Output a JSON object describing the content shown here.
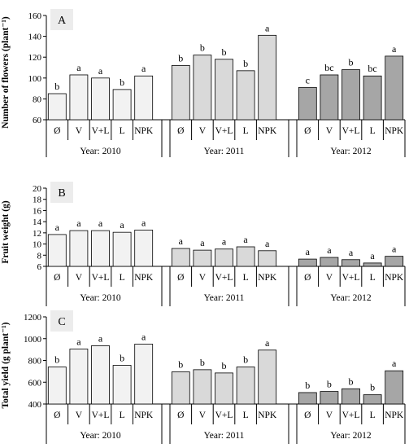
{
  "chart_data": [
    {
      "type": "bar",
      "panel_label": "A",
      "ylabel": "Number of flowers (plant⁻¹)",
      "ylim": [
        60,
        160
      ],
      "yticks": [
        60,
        80,
        100,
        120,
        140,
        160
      ],
      "categories": [
        "Ø",
        "V",
        "V+L",
        "L",
        "NPK"
      ],
      "groups": [
        {
          "name": "Year: 2010",
          "color": "#f2f2f2",
          "values": [
            85,
            103,
            100,
            89,
            102
          ],
          "letters": [
            "b",
            "a",
            "a",
            "b",
            "a"
          ]
        },
        {
          "name": "Year: 2011",
          "color": "#d9d9d9",
          "values": [
            112,
            122,
            118,
            107,
            141
          ],
          "letters": [
            "b",
            "b",
            "b",
            "b",
            "a"
          ]
        },
        {
          "name": "Year: 2012",
          "color": "#a6a6a6",
          "values": [
            91,
            103,
            108,
            102,
            121
          ],
          "letters": [
            "c",
            "bc",
            "b",
            "bc",
            "a"
          ]
        }
      ]
    },
    {
      "type": "bar",
      "panel_label": "B",
      "ylabel": "Fruit weight (g)",
      "ylim": [
        6,
        20
      ],
      "yticks": [
        6,
        8,
        10,
        12,
        14,
        16,
        18,
        20
      ],
      "categories": [
        "Ø",
        "V",
        "V+L",
        "L",
        "NPK"
      ],
      "groups": [
        {
          "name": "Year: 2010",
          "color": "#f2f2f2",
          "values": [
            11.7,
            12.4,
            12.4,
            12.1,
            12.5
          ],
          "letters": [
            "a",
            "a",
            "a",
            "a",
            "a"
          ]
        },
        {
          "name": "Year: 2011",
          "color": "#d9d9d9",
          "values": [
            9.2,
            8.9,
            9.1,
            9.5,
            8.8
          ],
          "letters": [
            "a",
            "a",
            "a",
            "a",
            "a"
          ]
        },
        {
          "name": "Year: 2012",
          "color": "#a6a6a6",
          "values": [
            7.3,
            7.6,
            7.2,
            6.6,
            7.8
          ],
          "letters": [
            "a",
            "a",
            "a",
            "a",
            "a"
          ]
        }
      ]
    },
    {
      "type": "bar",
      "panel_label": "C",
      "ylabel": "Total yield (g plant⁻¹)",
      "ylim": [
        400,
        1200
      ],
      "yticks": [
        400,
        600,
        800,
        1000,
        1200
      ],
      "categories": [
        "Ø",
        "V",
        "V+L",
        "L",
        "NPK"
      ],
      "groups": [
        {
          "name": "Year: 2010",
          "color": "#f2f2f2",
          "values": [
            740,
            905,
            935,
            755,
            950
          ],
          "letters": [
            "b",
            "a",
            "a",
            "b",
            "a"
          ]
        },
        {
          "name": "Year: 2011",
          "color": "#d9d9d9",
          "values": [
            695,
            715,
            685,
            740,
            895
          ],
          "letters": [
            "b",
            "b",
            "b",
            "b",
            "a"
          ]
        },
        {
          "name": "Year: 2012",
          "color": "#a6a6a6",
          "values": [
            505,
            515,
            540,
            485,
            705
          ],
          "letters": [
            "b",
            "b",
            "b",
            "b",
            "a"
          ]
        }
      ]
    }
  ]
}
